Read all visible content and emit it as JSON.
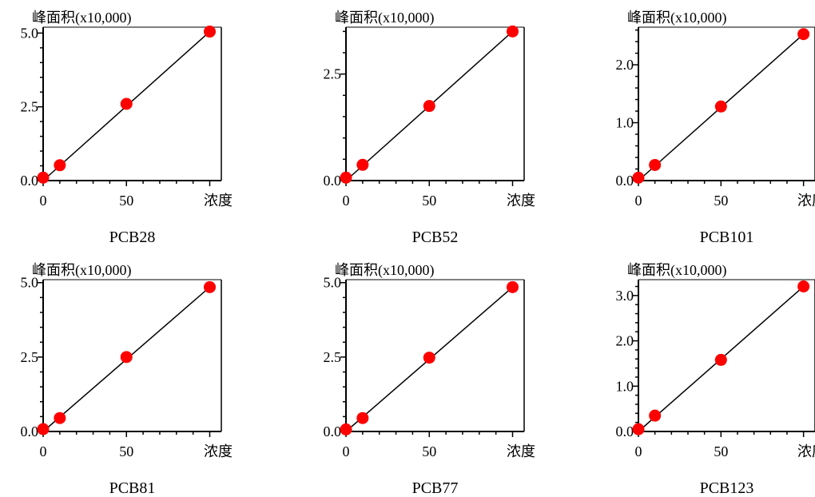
{
  "chart_data": [
    {
      "type": "scatter",
      "title": "PCB28",
      "ylabel": "峰面积(x10,000)",
      "xlabel": "浓度",
      "x_ticks": [
        "0",
        "50"
      ],
      "y_ticks": [
        "0.0",
        "2.5",
        "5.0"
      ],
      "xlim": [
        0,
        100
      ],
      "ylim": [
        0,
        5.2
      ],
      "points": [
        [
          0,
          0.1
        ],
        [
          10,
          0.52
        ],
        [
          50,
          2.6
        ],
        [
          100,
          5.05
        ]
      ],
      "fit_line": [
        [
          0,
          0.0
        ],
        [
          100,
          5.05
        ]
      ]
    },
    {
      "type": "scatter",
      "title": "PCB52",
      "ylabel": "峰面积(x10,000)",
      "xlabel": "浓度",
      "x_ticks": [
        "0",
        "50"
      ],
      "y_ticks": [
        "0.0",
        "2.5"
      ],
      "xlim": [
        0,
        100
      ],
      "ylim": [
        0,
        3.6
      ],
      "points": [
        [
          0,
          0.07
        ],
        [
          10,
          0.37
        ],
        [
          50,
          1.75
        ],
        [
          100,
          3.5
        ]
      ],
      "fit_line": [
        [
          0,
          0.0
        ],
        [
          100,
          3.5
        ]
      ]
    },
    {
      "type": "scatter",
      "title": "PCB101",
      "ylabel": "峰面积(x10,000)",
      "xlabel": "浓度",
      "x_ticks": [
        "0",
        "50"
      ],
      "y_ticks": [
        "0.0",
        "1.0",
        "2.0"
      ],
      "xlim": [
        0,
        100
      ],
      "ylim": [
        0,
        2.65
      ],
      "points": [
        [
          0,
          0.05
        ],
        [
          10,
          0.27
        ],
        [
          50,
          1.28
        ],
        [
          100,
          2.53
        ]
      ],
      "fit_line": [
        [
          0,
          0.0
        ],
        [
          100,
          2.53
        ]
      ]
    },
    {
      "type": "scatter",
      "title": "PCB81",
      "ylabel": "峰面积(x10,000)",
      "xlabel": "浓度",
      "x_ticks": [
        "0",
        "50"
      ],
      "y_ticks": [
        "0.0",
        "2.5",
        "5.0"
      ],
      "xlim": [
        0,
        100
      ],
      "ylim": [
        0,
        5.1
      ],
      "points": [
        [
          0,
          0.08
        ],
        [
          10,
          0.45
        ],
        [
          50,
          2.5
        ],
        [
          100,
          4.85
        ]
      ],
      "fit_line": [
        [
          0,
          0.0
        ],
        [
          100,
          4.85
        ]
      ]
    },
    {
      "type": "scatter",
      "title": "PCB77",
      "ylabel": "峰面积(x10,000)",
      "xlabel": "浓度",
      "x_ticks": [
        "0",
        "50"
      ],
      "y_ticks": [
        "0.0",
        "2.5",
        "5.0"
      ],
      "xlim": [
        0,
        100
      ],
      "ylim": [
        0,
        5.1
      ],
      "points": [
        [
          0,
          0.07
        ],
        [
          10,
          0.45
        ],
        [
          50,
          2.48
        ],
        [
          100,
          4.85
        ]
      ],
      "fit_line": [
        [
          0,
          0.0
        ],
        [
          100,
          4.85
        ]
      ]
    },
    {
      "type": "scatter",
      "title": "PCB123",
      "ylabel": "峰面积(x10,000)",
      "xlabel": "浓度",
      "x_ticks": [
        "0",
        "50"
      ],
      "y_ticks": [
        "0.0",
        "1.0",
        "2.0",
        "3.0"
      ],
      "xlim": [
        0,
        100
      ],
      "ylim": [
        0,
        3.35
      ],
      "points": [
        [
          0,
          0.05
        ],
        [
          10,
          0.35
        ],
        [
          50,
          1.58
        ],
        [
          100,
          3.2
        ]
      ],
      "fit_line": [
        [
          0,
          0.0
        ],
        [
          100,
          3.2
        ]
      ]
    }
  ],
  "colors": {
    "point": "#ff0000",
    "line": "#000000",
    "axis": "#000000"
  }
}
